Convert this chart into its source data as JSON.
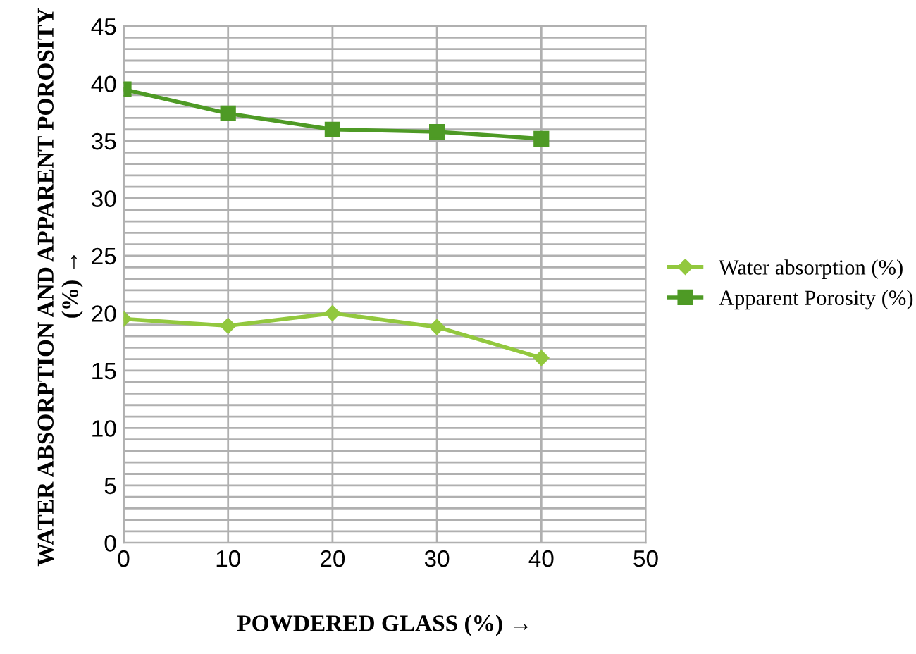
{
  "chart_data": {
    "type": "line",
    "xlabel": "POWDERED GLASS (%) →",
    "ylabel": "WATER ABSORPTION AND APPARENT POROSITY  (%) →",
    "x": [
      0,
      10,
      20,
      30,
      40
    ],
    "series": [
      {
        "name": "Water absorption (%)",
        "color": "#92c83e",
        "marker": "diamond",
        "values": [
          19.5,
          18.9,
          20.0,
          18.8,
          16.1
        ]
      },
      {
        "name": "Apparent Porosity (%)",
        "color": "#4e9a25",
        "marker": "square",
        "values": [
          39.5,
          37.4,
          36.0,
          35.8,
          35.2
        ]
      }
    ],
    "xlim": [
      0,
      50
    ],
    "xticks": [
      0,
      10,
      20,
      30,
      40,
      50
    ],
    "ylim": [
      0,
      45
    ],
    "yticks": [
      0,
      {
        "value": 1,
        "label": null
      },
      {
        "value": 2,
        "label": null
      },
      {
        "value": 3,
        "label": null
      },
      {
        "value": 4,
        "label": null
      },
      5,
      {
        "value": 6,
        "label": null
      },
      {
        "value": 7,
        "label": null
      },
      {
        "value": 8,
        "label": null
      },
      {
        "value": 9,
        "label": null
      },
      10,
      {
        "value": 11,
        "label": null
      },
      {
        "value": 12,
        "label": null
      },
      {
        "value": 13,
        "label": null
      },
      {
        "value": 14,
        "label": null
      },
      15,
      {
        "value": 16,
        "label": null
      },
      {
        "value": 17,
        "label": null
      },
      {
        "value": 18,
        "label": null
      },
      {
        "value": 19,
        "label": null
      },
      20,
      {
        "value": 21,
        "label": null
      },
      {
        "value": 22,
        "label": null
      },
      {
        "value": 23,
        "label": null
      },
      {
        "value": 24,
        "label": null
      },
      25,
      {
        "value": 26,
        "label": null
      },
      {
        "value": 27,
        "label": null
      },
      {
        "value": 28,
        "label": null
      },
      {
        "value": 29,
        "label": null
      },
      30,
      {
        "value": 31,
        "label": null
      },
      {
        "value": 32,
        "label": null
      },
      {
        "value": 33,
        "label": null
      },
      {
        "value": 34,
        "label": null
      },
      35,
      {
        "value": 36,
        "label": null
      },
      {
        "value": 37,
        "label": null
      },
      {
        "value": 38,
        "label": null
      },
      {
        "value": 39,
        "label": null
      },
      40,
      {
        "value": 41,
        "label": null
      },
      {
        "value": 42,
        "label": null
      },
      {
        "value": 43,
        "label": null
      },
      {
        "value": 44,
        "label": null
      },
      45
    ],
    "grid": true,
    "legend": "right",
    "line_style": "solid"
  }
}
